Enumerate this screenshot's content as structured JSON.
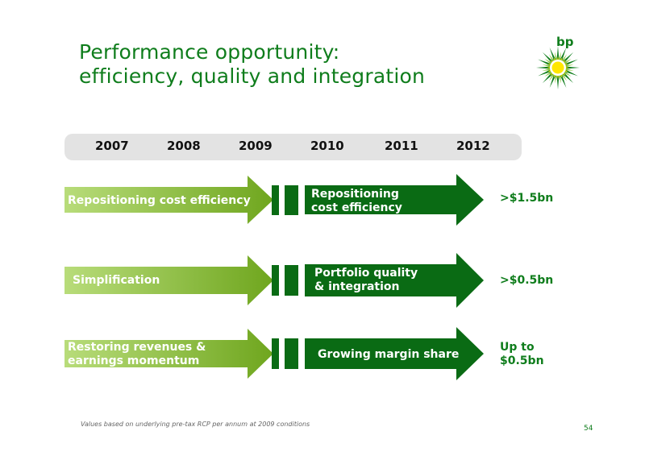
{
  "title": {
    "line1": "Performance opportunity:",
    "line2": "efficiency, quality and integration"
  },
  "logo": {
    "text": "bp",
    "icon": "helios-sunburst-icon"
  },
  "timeline": {
    "years": [
      "2007",
      "2008",
      "2009",
      "2010",
      "2011",
      "2012"
    ]
  },
  "rows": [
    {
      "past": {
        "line1": "Repositioning cost efficiency",
        "line2": ""
      },
      "future": {
        "line1": "Repositioning",
        "line2": "cost efficiency"
      },
      "value": {
        "line1": ">$1.5bn",
        "line2": ""
      }
    },
    {
      "past": {
        "line1": "Simplification",
        "line2": ""
      },
      "future": {
        "line1": "Portfolio quality",
        "line2": "& integration"
      },
      "value": {
        "line1": ">$0.5bn",
        "line2": ""
      }
    },
    {
      "past": {
        "line1": "Restoring revenues &",
        "line2": "earnings momentum"
      },
      "future": {
        "line1": "Growing margin share",
        "line2": ""
      },
      "value": {
        "line1": "Up to",
        "line2": "$0.5bn"
      }
    }
  ],
  "colors": {
    "brand_green": "#0f7d1c",
    "dark_green": "#0a6b14",
    "light_green": "#8cc63f",
    "yellow": "#ffe600"
  },
  "footnote": "Values based on underlying pre-tax RCP per annum at 2009 conditions",
  "page_number": "54"
}
